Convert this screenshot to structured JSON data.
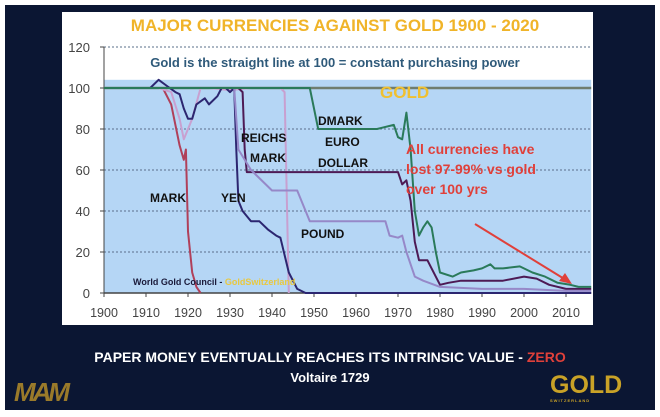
{
  "chart_data": {
    "type": "line",
    "title": "MAJOR CURRENCIES AGAINST GOLD  1900 - 2020",
    "subtitle": "Gold is the straight line at 100 = constant purchasing power",
    "xlabel": "",
    "ylabel": "",
    "xlim": [
      1900,
      2016
    ],
    "ylim": [
      0,
      120
    ],
    "xticks": [
      "1900",
      "1910",
      "1920",
      "1930",
      "1940",
      "1950",
      "1960",
      "1970",
      "1980",
      "1990",
      "2000",
      "2010"
    ],
    "yticks": [
      "0",
      "20",
      "40",
      "60",
      "80",
      "100",
      "120"
    ],
    "grid": true,
    "series": [
      {
        "name": "GOLD",
        "color": "#6f7d6f",
        "x": [
          1900,
          2016
        ],
        "y": [
          100,
          100
        ]
      },
      {
        "name": "MARK",
        "color": "#b0405a",
        "x": [
          1900,
          1914,
          1916,
          1918,
          1919,
          1919.5,
          1920,
          1921,
          1922,
          1923
        ],
        "y": [
          100,
          100,
          92,
          72,
          65,
          70,
          30,
          10,
          3,
          0
        ]
      },
      {
        "name": "REICHS MARK",
        "color": "#c8a0d0",
        "x": [
          1900,
          1913,
          1916,
          1918,
          1919,
          1921,
          1923,
          1925,
          1930,
          1935,
          1942,
          1943,
          1944
        ],
        "y": [
          100,
          100,
          98,
          85,
          75,
          85,
          100,
          100,
          99,
          100,
          100,
          98,
          0
        ]
      },
      {
        "name": "YEN",
        "color": "#2c2670",
        "x": [
          1900,
          1908,
          1911,
          1913,
          1915,
          1917,
          1918,
          1919,
          1920,
          1921,
          1922,
          1924,
          1925,
          1927,
          1928,
          1929,
          1930,
          1931,
          1931.5,
          1932,
          1933,
          1935,
          1937,
          1939,
          1941,
          1942,
          1944,
          1946,
          1948,
          2016
        ],
        "y": [
          100,
          100,
          100,
          104,
          101,
          98,
          97,
          90,
          85,
          85,
          92,
          95,
          92,
          96,
          100,
          100,
          98,
          100,
          70,
          45,
          40,
          35,
          35,
          31,
          28,
          27,
          10,
          2,
          0,
          0
        ]
      },
      {
        "name": "DOLLAR",
        "color": "#4d1a55",
        "x": [
          1900,
          1932,
          1933,
          1933.5,
          1934,
          1950,
          1960,
          1968,
          1970,
          1971,
          1972,
          1973,
          1974,
          1975,
          1977,
          1978,
          1980,
          1982,
          1985,
          1990,
          1995,
          2000,
          2003,
          2006,
          2010,
          2013,
          2016
        ],
        "y": [
          100,
          100,
          98,
          70,
          59,
          59,
          59,
          59,
          59,
          53,
          55,
          45,
          25,
          16,
          16,
          12,
          4,
          5,
          6,
          6,
          6,
          8,
          7,
          4,
          2,
          2,
          2
        ]
      },
      {
        "name": "POUND",
        "color": "#9688c8",
        "x": [
          1900,
          1931,
          1932,
          1935,
          1939,
          1940,
          1946,
          1949,
          1950,
          1960,
          1967,
          1968,
          1970,
          1971,
          1972,
          1973,
          1974,
          1976,
          1980,
          1990,
          2000,
          2010,
          2016
        ],
        "y": [
          100,
          100,
          70,
          60,
          52,
          50,
          50,
          35,
          35,
          35,
          35,
          28,
          27,
          28,
          20,
          14,
          8,
          6,
          3,
          2,
          2,
          1,
          1
        ]
      },
      {
        "name": "DMARK EURO",
        "color": "#2a7a5a",
        "x": [
          1900,
          1949,
          1950,
          1951,
          1960,
          1965,
          1969,
          1970,
          1971,
          1972,
          1973,
          1974,
          1975,
          1976,
          1977,
          1978,
          1979,
          1980,
          1983,
          1985,
          1988,
          1990,
          1992,
          1993,
          1995,
          1999,
          2002,
          2005,
          2008,
          2011,
          2013,
          2016
        ],
        "y": [
          100,
          100,
          90,
          80,
          80,
          80,
          82,
          76,
          75,
          88,
          70,
          40,
          28,
          32,
          35,
          32,
          20,
          10,
          8,
          10,
          11,
          12,
          14,
          12,
          12,
          13,
          10,
          8,
          5,
          4,
          3,
          3
        ]
      }
    ],
    "annotations": {
      "gold_label": "GOLD",
      "dmark": "DMARK",
      "euro": "EURO",
      "dollar": "DOLLAR",
      "reichs": "REICHS",
      "reichs_mark": "MARK",
      "mark": "MARK",
      "yen": "YEN",
      "pound": "POUND",
      "note_line1": "All currencies have",
      "note_line2": "lost 97-99% vs gold",
      "note_line3": "over 100 yrs",
      "source_prefix": "World Gold Council - ",
      "source_brand": "GoldSwitzerland"
    },
    "colors": {
      "title": "#f0b429",
      "subtitle": "#2f5a7a",
      "plot_fill": "#b5d6f5",
      "note": "#e0403a",
      "arrow": "#e0403a"
    }
  },
  "footer": {
    "quote": "PAPER MONEY EVENTUALLY REACHES ITS INTRINSIC VALUE - ",
    "quote_highlight": "ZERO",
    "attribution": "Voltaire 1729"
  },
  "logos": {
    "left": "MAM",
    "right": "GOLD",
    "right_sub": "SWITZERLAND"
  }
}
